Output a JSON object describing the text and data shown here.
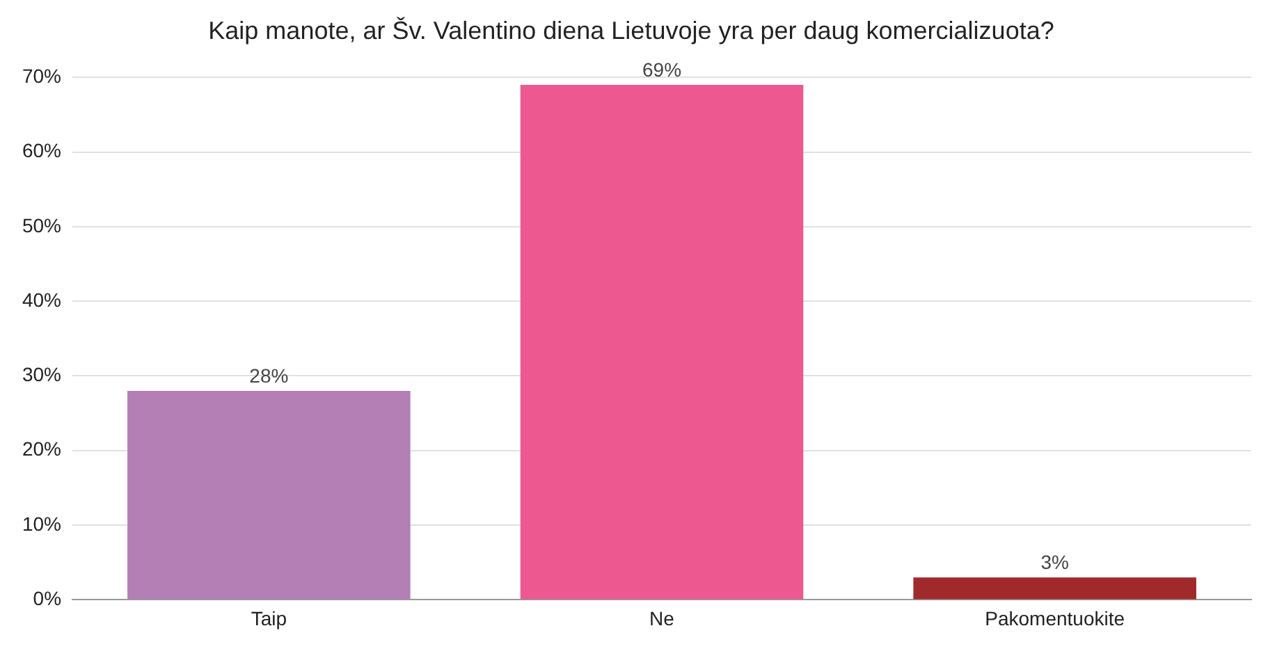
{
  "chart_data": {
    "type": "bar",
    "title": "Kaip manote, ar Šv. Valentino diena Lietuvoje yra per daug komercializuota?",
    "categories": [
      "Taip",
      "Ne",
      "Pakomentuokite"
    ],
    "values": [
      28,
      69,
      3
    ],
    "colors": [
      "#b47fb4",
      "#ee5891",
      "#a0292b"
    ],
    "value_labels": [
      "28%",
      "69%",
      "3%"
    ],
    "ylim": [
      0,
      70
    ],
    "yticks": [
      {
        "value": 0,
        "label": "0%"
      },
      {
        "value": 10,
        "label": "10%"
      },
      {
        "value": 20,
        "label": "20%"
      },
      {
        "value": 30,
        "label": "30%"
      },
      {
        "value": 40,
        "label": "40%"
      },
      {
        "value": 50,
        "label": "50%"
      },
      {
        "value": 60,
        "label": "60%"
      },
      {
        "value": 70,
        "label": "70%"
      }
    ],
    "grid": "y",
    "legend": false
  }
}
